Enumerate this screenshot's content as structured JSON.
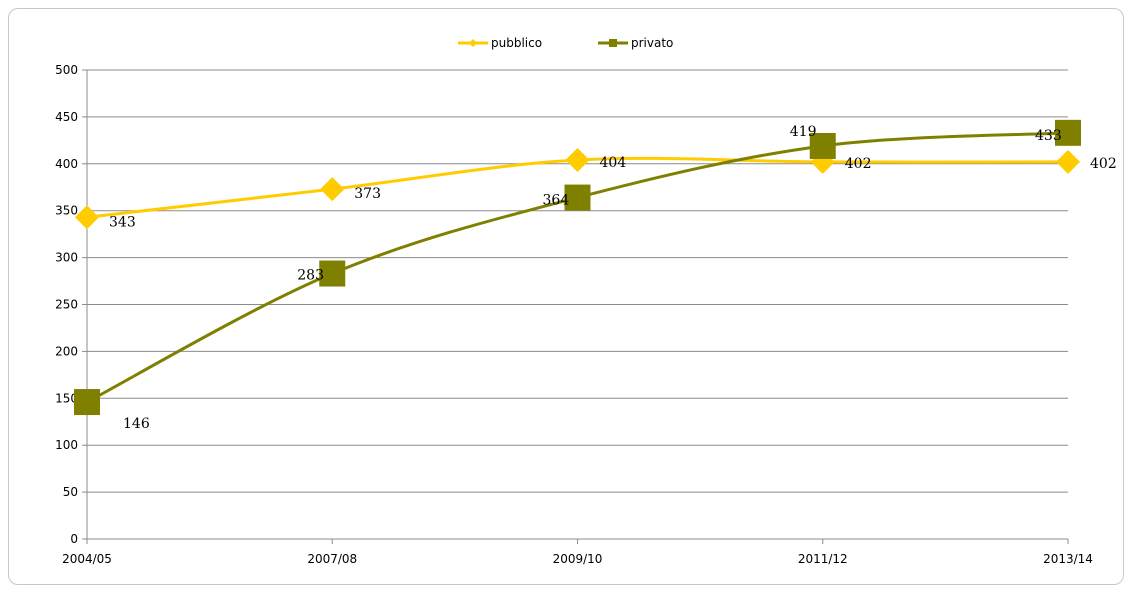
{
  "chart_data": {
    "type": "line",
    "categories": [
      "2004/05",
      "2007/08",
      "2009/10",
      "2011/12",
      "2013/14"
    ],
    "series": [
      {
        "name": "pubblico",
        "values": [
          343,
          373,
          404,
          402,
          402
        ],
        "color": "#FFCC00",
        "marker": "diamond"
      },
      {
        "name": "privato",
        "values": [
          146,
          283,
          364,
          419,
          433
        ],
        "color": "#808000",
        "marker": "square"
      }
    ],
    "y_ticks": [
      0,
      50,
      100,
      150,
      200,
      250,
      300,
      350,
      400,
      450,
      500
    ],
    "ylim": [
      0,
      500
    ],
    "grid": true,
    "legend_position": "top-center",
    "smooth": true
  }
}
